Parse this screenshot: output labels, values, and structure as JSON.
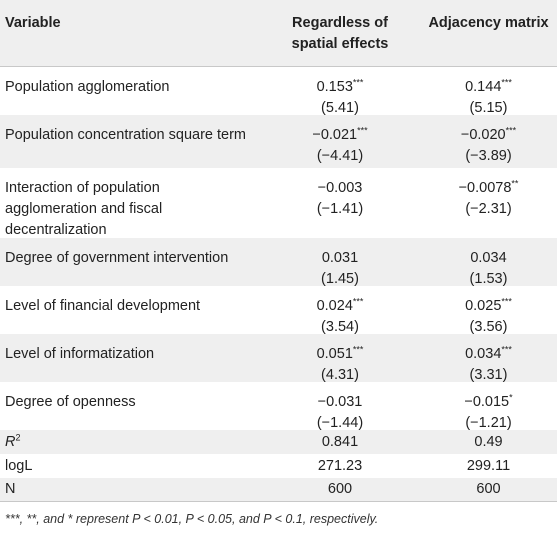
{
  "table": {
    "header": {
      "variable": "Variable",
      "col1_line1": "Regardless of",
      "col1_line2": "spatial effects",
      "col2": "Adjacency matrix"
    },
    "rows": [
      {
        "var_lines": [
          "Population agglomeration"
        ],
        "c1_coef": "0.153",
        "c1_stars": "***",
        "c1_t": "(5.41)",
        "c2_coef": "0.144",
        "c2_stars": "***",
        "c2_t": "(5.15)"
      },
      {
        "var_lines": [
          "Population concentration square term"
        ],
        "c1_coef": "−0.021",
        "c1_stars": "***",
        "c1_t": "(−4.41)",
        "c2_coef": "−0.020",
        "c2_stars": "***",
        "c2_t": "(−3.89)"
      },
      {
        "var_lines": [
          "Interaction of population",
          "agglomeration and fiscal",
          "decentralization"
        ],
        "c1_coef": "−0.003",
        "c1_stars": "",
        "c1_t": "(−1.41)",
        "c2_coef": "−0.0078",
        "c2_stars": "**",
        "c2_t": "(−2.31)"
      },
      {
        "var_lines": [
          "Degree of government intervention"
        ],
        "c1_coef": "0.031",
        "c1_stars": "",
        "c1_t": "(1.45)",
        "c2_coef": "0.034",
        "c2_stars": "",
        "c2_t": "(1.53)"
      },
      {
        "var_lines": [
          "Level of financial development"
        ],
        "c1_coef": "0.024",
        "c1_stars": "***",
        "c1_t": "(3.54)",
        "c2_coef": "0.025",
        "c2_stars": "***",
        "c2_t": "(3.56)"
      },
      {
        "var_lines": [
          "Level of informatization"
        ],
        "c1_coef": "0.051",
        "c1_stars": "***",
        "c1_t": "(4.31)",
        "c2_coef": "0.034",
        "c2_stars": "***",
        "c2_t": "(3.31)"
      },
      {
        "var_lines": [
          "Degree of openness"
        ],
        "c1_coef": "−0.031",
        "c1_stars": "",
        "c1_t": "(−1.44)",
        "c2_coef": "−0.015",
        "c2_stars": "*",
        "c2_t": "(−1.21)"
      }
    ],
    "r2": {
      "label_base": "R",
      "label_sup": "2",
      "c1": "0.841",
      "c2": "0.49"
    },
    "logl": {
      "label": "logL",
      "c1": "271.23",
      "c2": "299.11"
    },
    "n": {
      "label": "N",
      "c1": "600",
      "c2": "600"
    }
  },
  "note": {
    "text": "***, **, and * represent P < 0.01, P < 0.05, and P < 0.1, respectively."
  }
}
